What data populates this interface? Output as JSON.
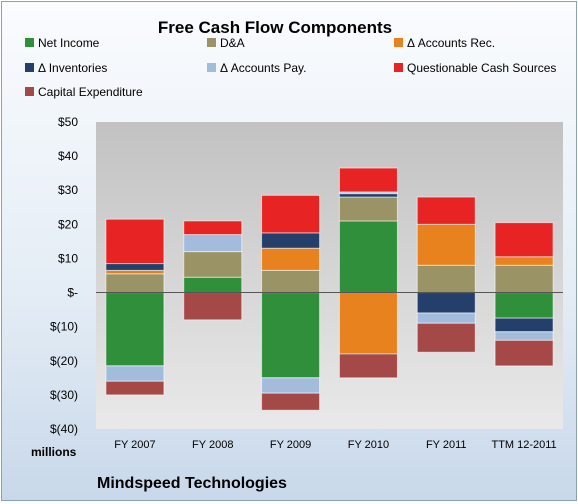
{
  "chart_data": {
    "type": "bar",
    "stacked": true,
    "title": "Free Cash Flow Components",
    "unit_label": "millions",
    "company": "Mindspeed Technologies",
    "categories": [
      "FY 2007",
      "FY 2008",
      "FY 2009",
      "FY 2010",
      "FY 2011",
      "TTM 12-2011"
    ],
    "ylim": [
      -40,
      50
    ],
    "yticks": [
      50,
      40,
      30,
      20,
      10,
      0,
      -10,
      -20,
      -30,
      -40
    ],
    "ytick_labels": [
      "$50",
      "$40",
      "$30",
      "$20",
      "$10",
      "$-",
      "$(10)",
      "$(20)",
      "$(30)",
      "$(40)"
    ],
    "legend_placement": "top",
    "series": [
      {
        "name": "Net Income",
        "color": "#2f8f3a",
        "values": [
          -21.5,
          4.5,
          -25.0,
          21.0,
          0,
          -7.5
        ]
      },
      {
        "name": "D&A",
        "color": "#9a9365",
        "values": [
          5.5,
          7.5,
          6.5,
          7.0,
          8.0,
          8.0
        ]
      },
      {
        "name": "Δ Accounts Rec.",
        "color": "#e8821e",
        "values": [
          1.0,
          0,
          6.5,
          -18.0,
          12.0,
          2.5
        ]
      },
      {
        "name": "Δ Inventories",
        "color": "#24406a",
        "values": [
          2.0,
          0,
          4.5,
          1.0,
          -6.0,
          -4.0
        ]
      },
      {
        "name": "Δ Accounts Pay.",
        "color": "#a4bcdc",
        "values": [
          -4.5,
          5.0,
          -4.5,
          0.5,
          -3.0,
          -2.5
        ]
      },
      {
        "name": "Questionable Cash Sources",
        "color": "#e82323",
        "values": [
          13.0,
          4.0,
          11.0,
          7.0,
          8.0,
          10.0
        ]
      },
      {
        "name": "Capital Expenditure",
        "color": "#a54848",
        "values": [
          -4.0,
          -8.0,
          -5.0,
          -7.0,
          -8.5,
          -7.5
        ]
      }
    ]
  }
}
